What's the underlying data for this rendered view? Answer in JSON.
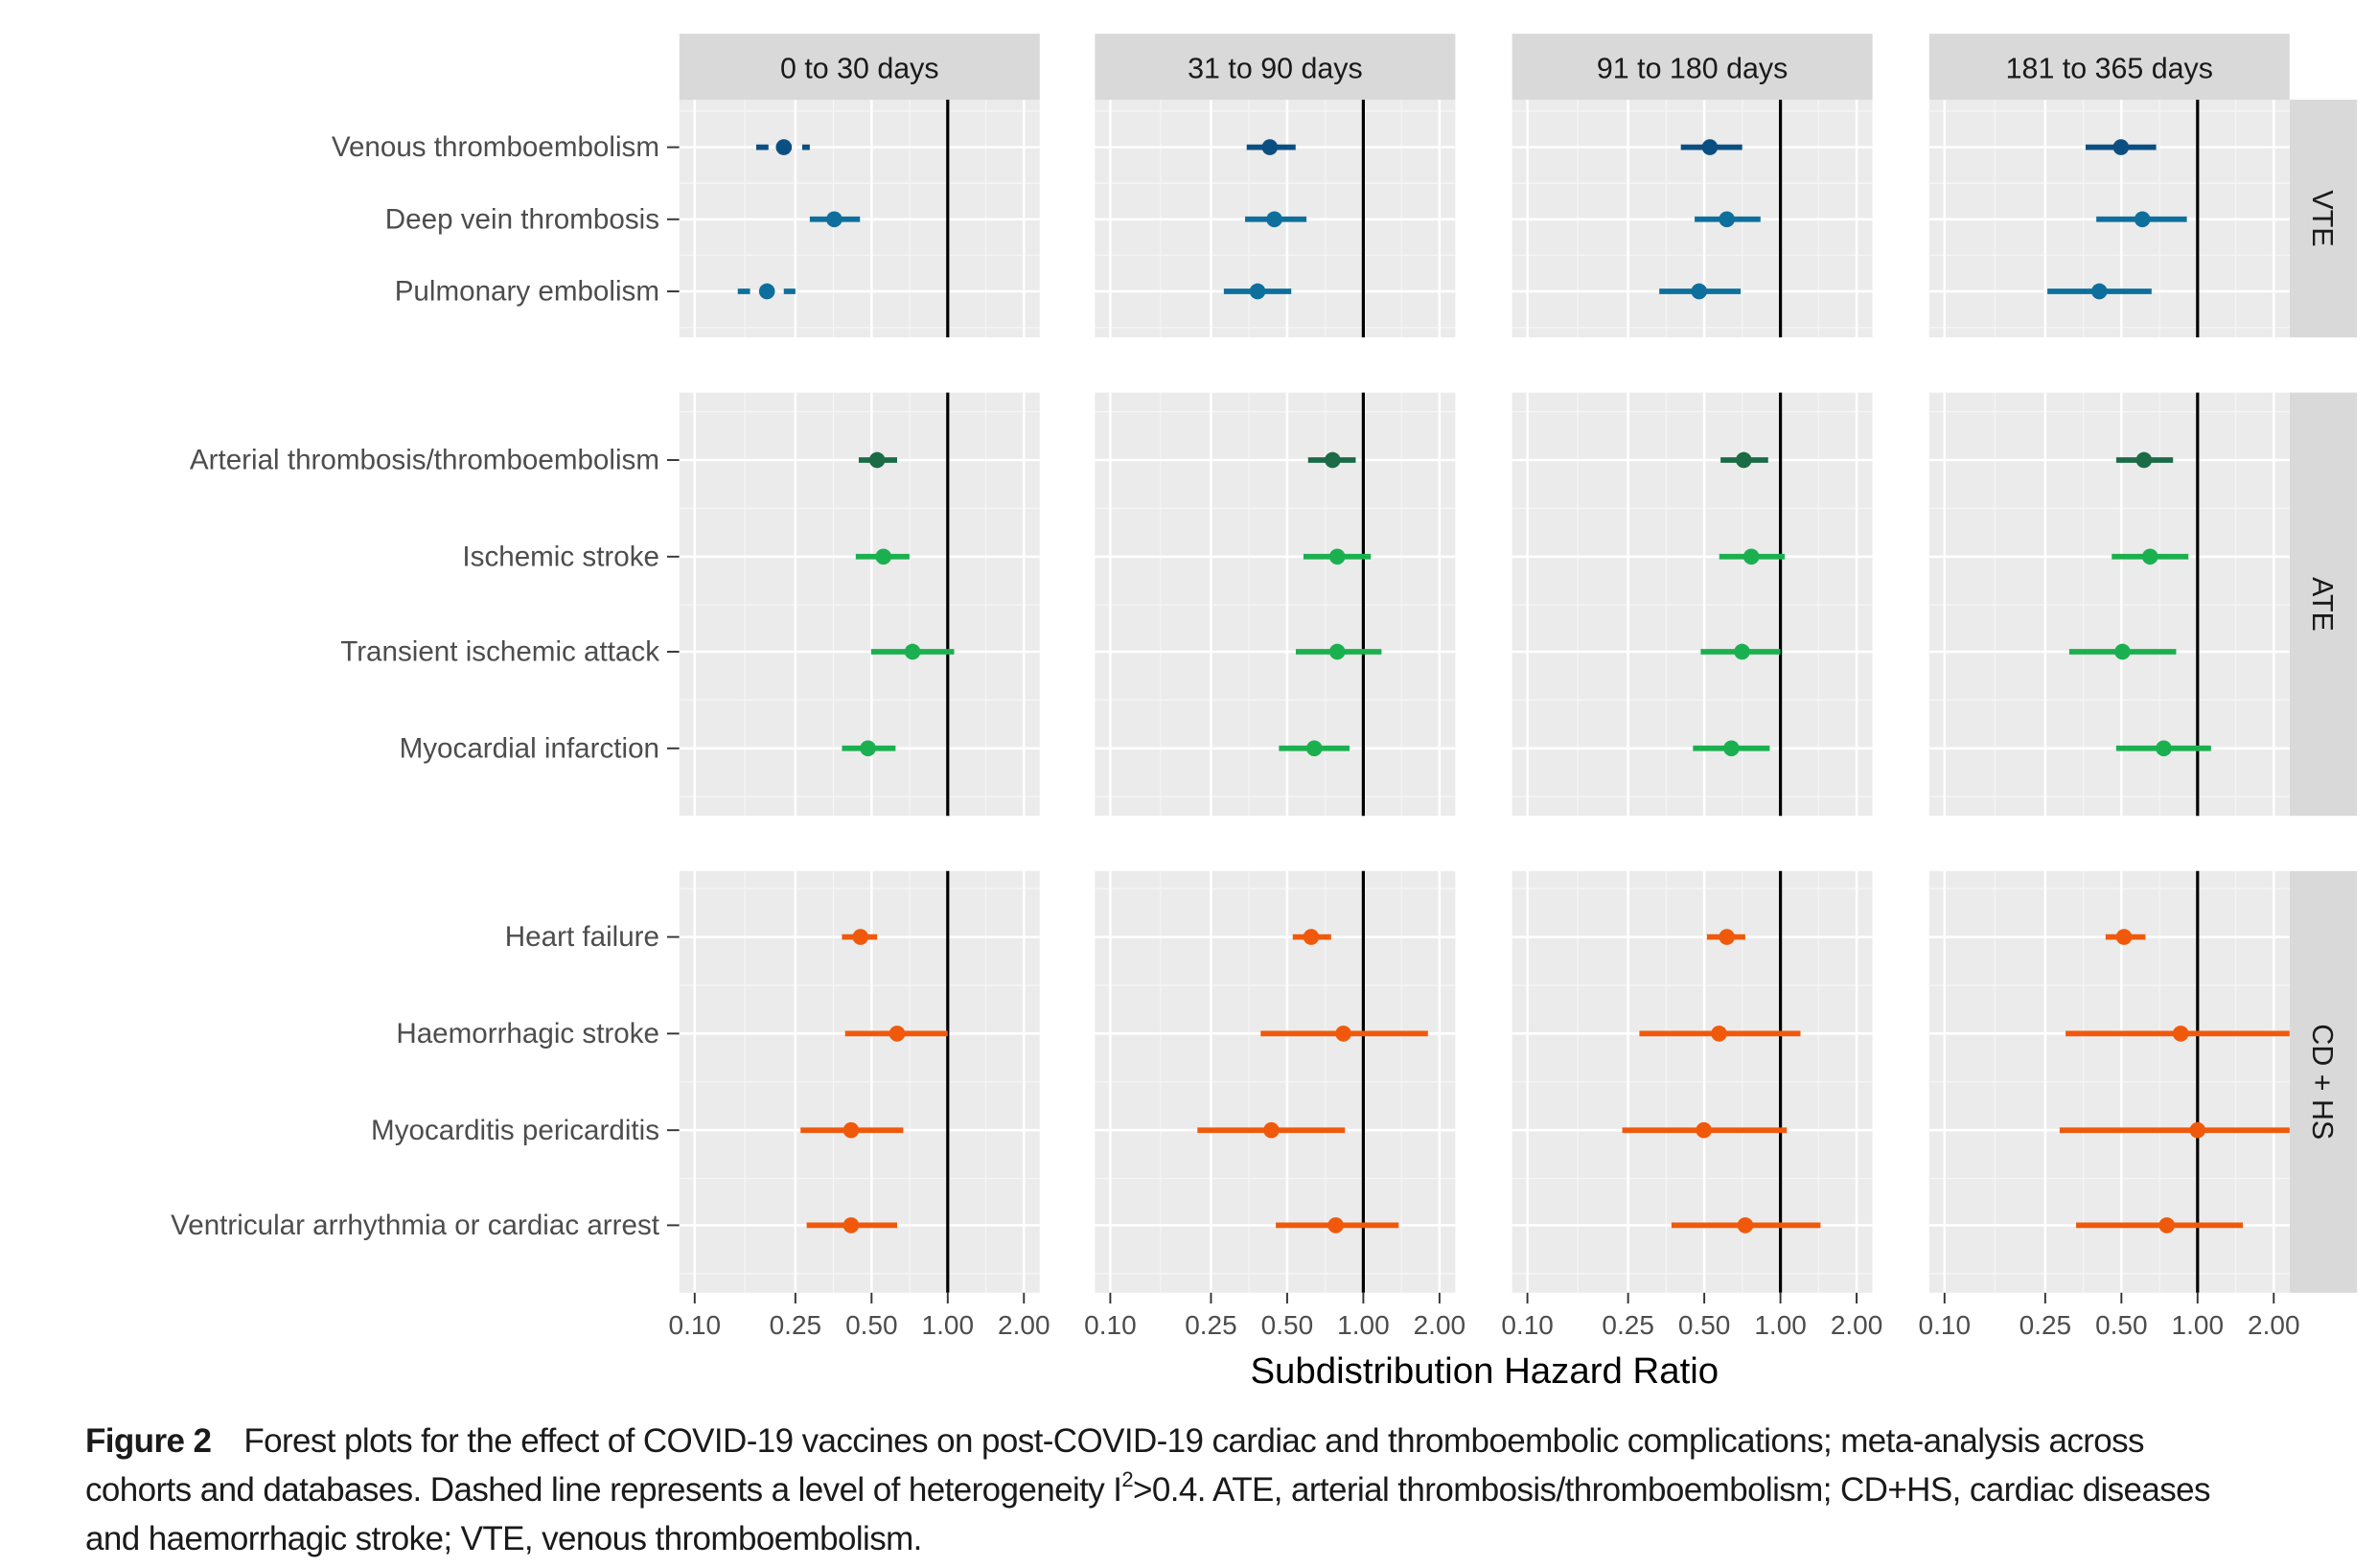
{
  "chart_data": {
    "type": "forest",
    "xlabel": "Subdistribution Hazard Ratio",
    "x_scale": "log10",
    "xlim": [
      0.087,
      2.31
    ],
    "x_ticks": [
      "0.10",
      "0.25",
      "0.50",
      "1.00",
      "2.00"
    ],
    "x_tick_values": [
      0.1,
      0.25,
      0.5,
      1.0,
      2.0
    ],
    "reference_line": 1.0,
    "panels": [
      "0 to 30 days",
      "31 to 90 days",
      "91 to 180 days",
      "181 to 365 days"
    ],
    "groups": [
      {
        "name": "VTE",
        "rows": [
          {
            "label": "Venous thromboembolism",
            "color": "#0b4f82",
            "dashed": [
              true,
              false,
              false,
              false
            ],
            "est": [
              0.225,
              0.427,
              0.526,
              0.498
            ],
            "lo": [
              0.175,
              0.346,
              0.404,
              0.361
            ],
            "hi": [
              0.285,
              0.54,
              0.706,
              0.686
            ]
          },
          {
            "label": "Deep vein thrombosis",
            "color": "#0e6f9c",
            "dashed": [
              false,
              false,
              false,
              false
            ],
            "est": [
              0.356,
              0.445,
              0.614,
              0.605
            ],
            "lo": [
              0.285,
              0.341,
              0.458,
              0.398
            ],
            "hi": [
              0.45,
              0.596,
              0.834,
              0.907
            ]
          },
          {
            "label": "Pulmonary embolism",
            "color": "#0e6f9c",
            "dashed": [
              true,
              false,
              false,
              false
            ],
            "est": [
              0.193,
              0.382,
              0.477,
              0.409
            ],
            "lo": [
              0.148,
              0.281,
              0.332,
              0.255
            ],
            "hi": [
              0.25,
              0.519,
              0.696,
              0.658
            ]
          }
        ]
      },
      {
        "name": "ATE",
        "rows": [
          {
            "label": "Arterial thrombosis/thromboembolism",
            "color": "#1b6b47",
            "dashed": [
              false,
              false,
              false,
              false
            ],
            "est": [
              0.526,
              0.756,
              0.716,
              0.614
            ],
            "lo": [
              0.445,
              0.605,
              0.58,
              0.477
            ],
            "hi": [
              0.631,
              0.933,
              0.894,
              0.8
            ]
          },
          {
            "label": "Ischemic stroke",
            "color": "#1bb04f",
            "dashed": [
              false,
              false,
              false,
              false
            ],
            "est": [
              0.557,
              0.789,
              0.767,
              0.649
            ],
            "lo": [
              0.433,
              0.58,
              0.573,
              0.458
            ],
            "hi": [
              0.706,
              1.07,
              1.04,
              0.92
            ]
          },
          {
            "label": "Transient ischemic attack",
            "color": "#1bb04f",
            "dashed": [
              false,
              false,
              false,
              false
            ],
            "est": [
              0.726,
              0.789,
              0.705,
              0.505
            ],
            "lo": [
              0.498,
              0.541,
              0.484,
              0.311
            ],
            "hi": [
              1.06,
              1.18,
              1.0,
              0.823
            ]
          },
          {
            "label": "Myocardial infarction",
            "color": "#1bb04f",
            "dashed": [
              false,
              false,
              false,
              false
            ],
            "est": [
              0.484,
              0.64,
              0.64,
              0.735
            ],
            "lo": [
              0.382,
              0.464,
              0.451,
              0.477
            ],
            "hi": [
              0.622,
              0.882,
              0.907,
              1.13
            ]
          }
        ]
      },
      {
        "name": "CD + HS",
        "rows": [
          {
            "label": "Heart failure",
            "color": "#f0590b",
            "dashed": [
              false,
              false,
              false,
              false
            ],
            "est": [
              0.452,
              0.622,
              0.614,
              0.512
            ],
            "lo": [
              0.382,
              0.526,
              0.512,
              0.433
            ],
            "hi": [
              0.526,
              0.746,
              0.726,
              0.622
            ]
          },
          {
            "label": "Haemorrhagic stroke",
            "color": "#f0590b",
            "dashed": [
              false,
              false,
              false,
              false
            ],
            "est": [
              0.631,
              0.834,
              0.572,
              0.858
            ],
            "lo": [
              0.393,
              0.393,
              0.277,
              0.301
            ],
            "hi": [
              1.0,
              1.8,
              1.2,
              2.4
            ]
          },
          {
            "label": "Myocarditis pericarditis",
            "color": "#f0590b",
            "dashed": [
              false,
              false,
              false,
              false
            ],
            "est": [
              0.415,
              0.433,
              0.498,
              1.0
            ],
            "lo": [
              0.262,
              0.221,
              0.237,
              0.285
            ],
            "hi": [
              0.667,
              0.846,
              1.06,
              2.4
            ]
          },
          {
            "label": "Ventricular arrhythmia or cardiac arrest",
            "color": "#f0590b",
            "dashed": [
              false,
              false,
              false,
              false
            ],
            "est": [
              0.415,
              0.778,
              0.726,
              0.756
            ],
            "lo": [
              0.277,
              0.451,
              0.371,
              0.331
            ],
            "hi": [
              0.631,
              1.38,
              1.44,
              1.51
            ]
          }
        ]
      }
    ]
  },
  "caption": {
    "label": "Figure 2",
    "line1": "Forest plots for the effect of COVID-19 vaccines on post-COVID-19 cardiac and thromboembolic complications; meta-analysis across",
    "line2a": "cohorts and databases. Dashed line represents a level of heterogeneity I",
    "line2sup": "2",
    "line2b": ">0.4. ATE, arterial thrombosis/thromboembolism; CD+HS, cardiac diseases",
    "line3": "and haemorrhagic stroke; VTE, venous thromboembolism."
  }
}
